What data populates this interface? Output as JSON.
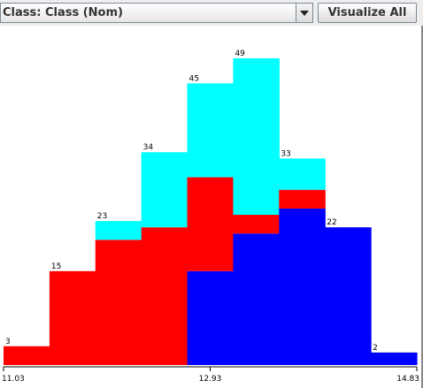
{
  "toolbar": {
    "class_label": "Class: Class (Nom)",
    "visualize_all_label": "Visualize All"
  },
  "colors": {
    "class_1": "#ff0000",
    "class_2": "#00ffff",
    "class_3": "#0000ff",
    "axis": "#000000",
    "background": "#ffffff"
  },
  "chart_data": {
    "type": "bar",
    "stacked": true,
    "bins": 9,
    "x_range": [
      11.03,
      14.83
    ],
    "x_tick_labels": [
      "11.03",
      "12.93",
      "14.83"
    ],
    "totals": [
      3,
      15,
      23,
      34,
      45,
      49,
      33,
      22,
      2
    ],
    "series": [
      {
        "color": "#0000ff",
        "values": [
          0,
          0,
          0,
          0,
          15,
          21,
          25,
          22,
          2
        ]
      },
      {
        "color": "#ff0000",
        "values": [
          3,
          15,
          20,
          22,
          15,
          3,
          3,
          0,
          0
        ]
      },
      {
        "color": "#00ffff",
        "values": [
          0,
          0,
          3,
          12,
          15,
          25,
          5,
          0,
          0
        ]
      }
    ],
    "ylim": [
      0,
      49
    ]
  }
}
